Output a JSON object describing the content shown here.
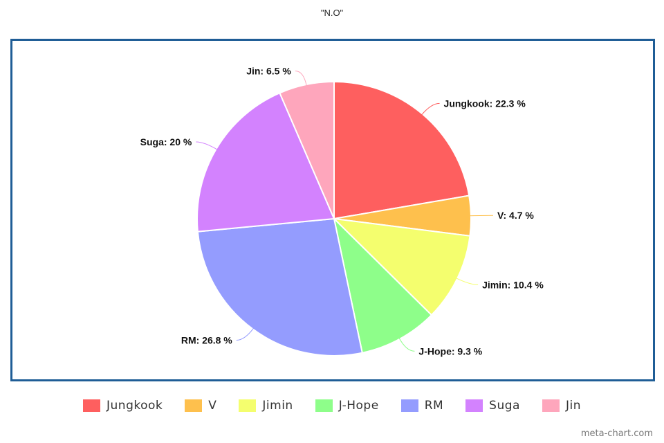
{
  "chart_data": {
    "type": "pie",
    "title": "\"N.O\"",
    "legend_position": "bottom",
    "unit": "%",
    "slices": [
      {
        "name": "Jungkook",
        "value": 22.3,
        "label": "Jungkook: 22.3 %",
        "color": "#fe5f5f"
      },
      {
        "name": "V",
        "value": 4.7,
        "label": "V: 4.7 %",
        "color": "#fec04d"
      },
      {
        "name": "Jimin",
        "value": 10.4,
        "label": "Jimin: 10.4 %",
        "color": "#f4fe6e"
      },
      {
        "name": "J-Hope",
        "value": 9.3,
        "label": "J-Hope: 9.3 %",
        "color": "#8efe8a"
      },
      {
        "name": "RM",
        "value": 26.8,
        "label": "RM: 26.8 %",
        "color": "#949cfe"
      },
      {
        "name": "Suga",
        "value": 20,
        "label": "Suga: 20 %",
        "color": "#d382fe"
      },
      {
        "name": "Jin",
        "value": 6.5,
        "label": "Jin: 6.5 %",
        "color": "#fea6bc"
      }
    ]
  },
  "legend": {
    "items": [
      {
        "label": "Jungkook",
        "color": "#fe5f5f"
      },
      {
        "label": "V",
        "color": "#fec04d"
      },
      {
        "label": "Jimin",
        "color": "#f4fe6e"
      },
      {
        "label": "J-Hope",
        "color": "#8efe8a"
      },
      {
        "label": "RM",
        "color": "#949cfe"
      },
      {
        "label": "Suga",
        "color": "#d382fe"
      },
      {
        "label": "Jin",
        "color": "#fea6bc"
      }
    ]
  },
  "colors": {
    "frame_border": "#1f5d96"
  },
  "watermark": "meta-chart.com"
}
